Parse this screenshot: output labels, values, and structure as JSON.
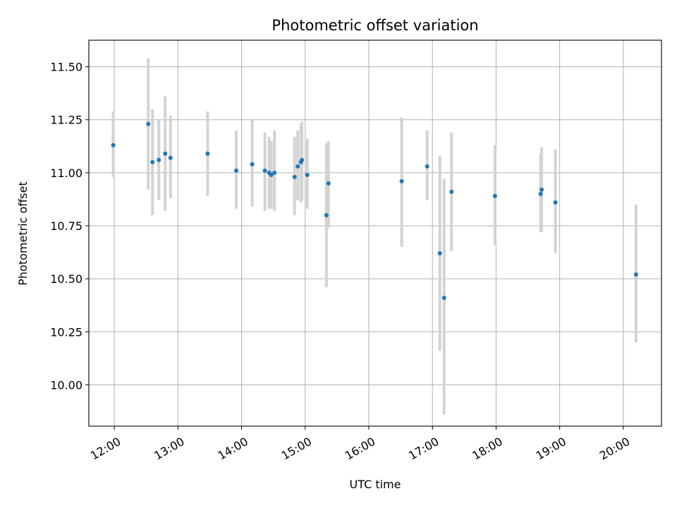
{
  "chart_data": {
    "type": "scatter",
    "title": "Photometric offset variation",
    "xlabel": "UTC time",
    "ylabel": "Photometric offset",
    "x_range_hours": [
      11.6,
      20.6
    ],
    "ylim": [
      9.805,
      11.625
    ],
    "x_ticks": [
      "12:00",
      "13:00",
      "14:00",
      "15:00",
      "16:00",
      "17:00",
      "18:00",
      "19:00",
      "20:00"
    ],
    "y_ticks": [
      "10.00",
      "10.25",
      "10.50",
      "10.75",
      "11.00",
      "11.25",
      "11.50"
    ],
    "grid": true,
    "legend": "none",
    "colors": {
      "point": "#1f77b4",
      "errorbar": "#d3d3d3",
      "grid": "#b0b0b0"
    },
    "points": [
      {
        "time": "11:59",
        "value": 11.13,
        "low": 10.98,
        "high": 11.29
      },
      {
        "time": "12:32",
        "value": 11.23,
        "low": 10.92,
        "high": 11.54
      },
      {
        "time": "12:36",
        "value": 11.05,
        "low": 10.8,
        "high": 11.3
      },
      {
        "time": "12:42",
        "value": 11.06,
        "low": 10.87,
        "high": 11.25
      },
      {
        "time": "12:48",
        "value": 11.09,
        "low": 10.82,
        "high": 11.36
      },
      {
        "time": "12:53",
        "value": 11.07,
        "low": 10.88,
        "high": 11.27
      },
      {
        "time": "13:28",
        "value": 11.09,
        "low": 10.89,
        "high": 11.29
      },
      {
        "time": "13:55",
        "value": 11.01,
        "low": 10.83,
        "high": 11.2
      },
      {
        "time": "14:10",
        "value": 11.04,
        "low": 10.84,
        "high": 11.25
      },
      {
        "time": "14:22",
        "value": 11.01,
        "low": 10.82,
        "high": 11.19
      },
      {
        "time": "14:26",
        "value": 11.0,
        "low": 10.83,
        "high": 11.17
      },
      {
        "time": "14:28",
        "value": 10.99,
        "low": 10.83,
        "high": 11.15
      },
      {
        "time": "14:31",
        "value": 11.0,
        "low": 10.82,
        "high": 11.2
      },
      {
        "time": "14:50",
        "value": 10.98,
        "low": 10.8,
        "high": 11.17
      },
      {
        "time": "14:53",
        "value": 11.03,
        "low": 10.87,
        "high": 11.2
      },
      {
        "time": "14:56",
        "value": 11.05,
        "low": 10.86,
        "high": 11.23
      },
      {
        "time": "14:57",
        "value": 11.06,
        "low": 10.87,
        "high": 11.24
      },
      {
        "time": "15:02",
        "value": 10.99,
        "low": 10.83,
        "high": 11.16
      },
      {
        "time": "15:20",
        "value": 10.8,
        "low": 10.46,
        "high": 11.14
      },
      {
        "time": "15:22",
        "value": 10.95,
        "low": 10.74,
        "high": 11.15
      },
      {
        "time": "16:31",
        "value": 10.96,
        "low": 10.65,
        "high": 11.26
      },
      {
        "time": "16:55",
        "value": 11.03,
        "low": 10.87,
        "high": 11.2
      },
      {
        "time": "17:07",
        "value": 10.62,
        "low": 10.16,
        "high": 11.08
      },
      {
        "time": "17:11",
        "value": 10.41,
        "low": 9.86,
        "high": 10.97
      },
      {
        "time": "17:18",
        "value": 10.91,
        "low": 10.63,
        "high": 11.19
      },
      {
        "time": "17:59",
        "value": 10.89,
        "low": 10.66,
        "high": 11.13
      },
      {
        "time": "18:42",
        "value": 10.9,
        "low": 10.72,
        "high": 11.09
      },
      {
        "time": "18:43",
        "value": 10.92,
        "low": 10.72,
        "high": 11.12
      },
      {
        "time": "18:56",
        "value": 10.86,
        "low": 10.62,
        "high": 11.11
      },
      {
        "time": "20:12",
        "value": 10.52,
        "low": 10.2,
        "high": 10.85
      }
    ]
  }
}
